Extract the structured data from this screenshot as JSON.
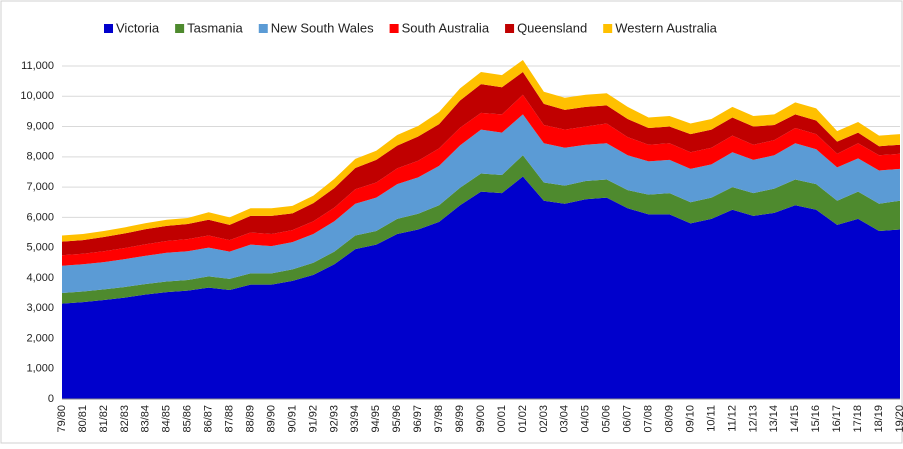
{
  "chart_data": {
    "type": "stacked-area",
    "categories": [
      "79/80",
      "80/81",
      "81/82",
      "82/83",
      "83/84",
      "84/85",
      "85/86",
      "86/87",
      "87/88",
      "88/89",
      "89/90",
      "90/91",
      "91/92",
      "92/93",
      "93/94",
      "94/95",
      "95/96",
      "96/97",
      "97/98",
      "98/99",
      "99/00",
      "00/01",
      "01/02",
      "02/03",
      "03/04",
      "04/05",
      "05/06",
      "06/07",
      "07/08",
      "08/09",
      "09/10",
      "10/11",
      "11/12",
      "12/13",
      "13/14",
      "14/15",
      "15/16",
      "16/17",
      "17/18",
      "18/19",
      "19/20"
    ],
    "series": [
      {
        "name": "Victoria",
        "color": "#0000cc",
        "values": [
          3150,
          3200,
          3270,
          3350,
          3450,
          3530,
          3580,
          3680,
          3600,
          3780,
          3780,
          3900,
          4100,
          4450,
          4950,
          5100,
          5450,
          5600,
          5850,
          6400,
          6850,
          6800,
          7350,
          6550,
          6450,
          6600,
          6650,
          6300,
          6100,
          6100,
          5800,
          5950,
          6250,
          6050,
          6150,
          6400,
          6250,
          5750,
          5950,
          5550,
          5600
        ]
      },
      {
        "name": "Tasmania",
        "color": "#4e8a2e",
        "values": [
          350,
          350,
          350,
          350,
          350,
          350,
          350,
          370,
          370,
          370,
          370,
          380,
          400,
          420,
          450,
          450,
          500,
          520,
          550,
          580,
          600,
          600,
          700,
          600,
          600,
          600,
          600,
          600,
          650,
          700,
          700,
          700,
          750,
          750,
          800,
          850,
          850,
          800,
          900,
          900,
          950
        ]
      },
      {
        "name": "New South Wales",
        "color": "#5b9bd5",
        "values": [
          900,
          900,
          900,
          920,
          930,
          950,
          950,
          950,
          900,
          950,
          900,
          900,
          950,
          1000,
          1050,
          1100,
          1150,
          1200,
          1300,
          1400,
          1450,
          1400,
          1350,
          1300,
          1250,
          1200,
          1200,
          1150,
          1100,
          1100,
          1100,
          1100,
          1150,
          1100,
          1100,
          1200,
          1150,
          1100,
          1100,
          1100,
          1050
        ]
      },
      {
        "name": "South Australia",
        "color": "#ff0000",
        "values": [
          350,
          350,
          360,
          370,
          380,
          390,
          400,
          400,
          380,
          400,
          400,
          400,
          420,
          450,
          480,
          500,
          520,
          550,
          580,
          580,
          550,
          600,
          650,
          600,
          600,
          600,
          650,
          600,
          550,
          550,
          550,
          550,
          550,
          500,
          500,
          500,
          500,
          450,
          500,
          500,
          500
        ]
      },
      {
        "name": "Queensland",
        "color": "#c00000",
        "values": [
          450,
          450,
          470,
          480,
          500,
          500,
          500,
          520,
          500,
          550,
          600,
          550,
          600,
          650,
          700,
          750,
          750,
          800,
          800,
          900,
          950,
          900,
          750,
          700,
          650,
          650,
          600,
          600,
          550,
          550,
          600,
          600,
          600,
          600,
          500,
          450,
          450,
          400,
          350,
          300,
          300
        ]
      },
      {
        "name": "Western Australia",
        "color": "#ffc000",
        "values": [
          200,
          200,
          200,
          200,
          200,
          200,
          200,
          250,
          250,
          250,
          250,
          250,
          250,
          300,
          300,
          300,
          350,
          350,
          400,
          400,
          400,
          400,
          400,
          400,
          400,
          400,
          400,
          400,
          350,
          350,
          350,
          350,
          350,
          350,
          350,
          400,
          400,
          350,
          350,
          350,
          350
        ]
      }
    ],
    "ylim": [
      0,
      11000
    ],
    "yticks": [
      0,
      {
        "value": 1000,
        "label": "1,000"
      },
      {
        "value": 2000,
        "label": "2,000"
      },
      {
        "value": 3000,
        "label": "3,000"
      },
      {
        "value": 4000,
        "label": "4,000"
      },
      {
        "value": 5000,
        "label": "5,000"
      },
      {
        "value": 6000,
        "label": "6,000"
      },
      {
        "value": 7000,
        "label": "7,000"
      },
      {
        "value": 8000,
        "label": "8,000"
      },
      {
        "value": 9000,
        "label": "9,000"
      },
      {
        "value": 10000,
        "label": "10,000"
      },
      {
        "value": 11000,
        "label": "11,000"
      }
    ],
    "grid": true
  }
}
